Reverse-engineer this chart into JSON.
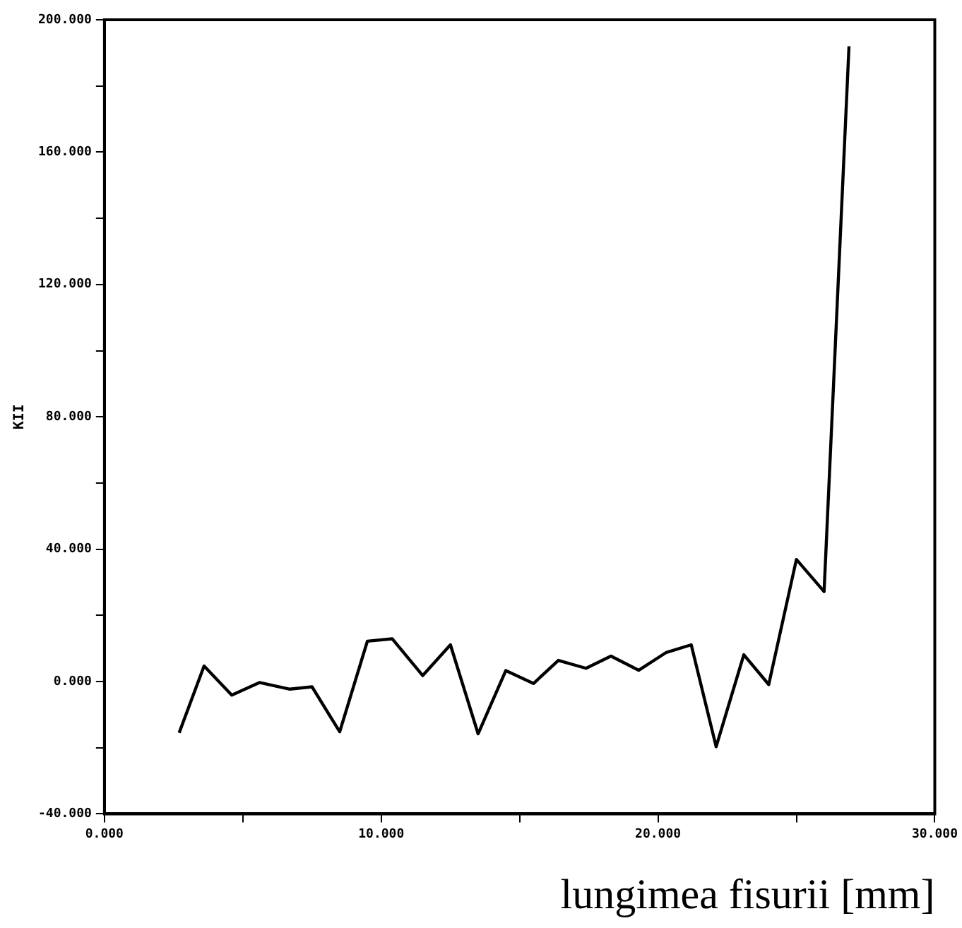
{
  "chart_data": {
    "type": "line",
    "xlabel": "lungimea fisurii [mm]",
    "ylabel": "KII",
    "x": [
      2.7,
      3.6,
      4.6,
      5.6,
      6.7,
      7.5,
      8.5,
      9.5,
      10.4,
      11.5,
      12.5,
      13.5,
      14.5,
      15.5,
      16.4,
      17.4,
      18.3,
      19.3,
      20.3,
      21.2,
      22.1,
      23.1,
      24.0,
      25.0,
      26.0,
      26.9
    ],
    "series": [
      {
        "color": "#000000",
        "values": [
          -15.5,
          4.7,
          -4.1,
          -0.3,
          -2.3,
          -1.6,
          -15.2,
          12.2,
          12.9,
          1.8,
          11.1,
          -15.8,
          3.3,
          -0.6,
          6.4,
          4.0,
          7.7,
          3.4,
          8.8,
          11.1,
          -19.7,
          8.1,
          -0.9,
          36.9,
          27.2,
          192
        ]
      }
    ],
    "xlim": [
      0,
      30
    ],
    "ylim": [
      -40,
      200
    ],
    "xticks": [
      {
        "value": 0,
        "label": "0.000"
      },
      {
        "value": 5,
        "label": null
      },
      {
        "value": 10,
        "label": "10.000"
      },
      {
        "value": 15,
        "label": null
      },
      {
        "value": 20,
        "label": "20.000"
      },
      {
        "value": 25,
        "label": null
      },
      {
        "value": 30,
        "label": "30.000"
      }
    ],
    "yticks": [
      {
        "value": -40,
        "label": "-40.000"
      },
      {
        "value": -20,
        "label": null
      },
      {
        "value": 0,
        "label": "0.000"
      },
      {
        "value": 20,
        "label": null
      },
      {
        "value": 40,
        "label": "40.000"
      },
      {
        "value": 60,
        "label": null
      },
      {
        "value": 80,
        "label": "80.000"
      },
      {
        "value": 100,
        "label": null
      },
      {
        "value": 120,
        "label": "120.000"
      },
      {
        "value": 140,
        "label": null
      },
      {
        "value": 160,
        "label": "160.000"
      },
      {
        "value": 180,
        "label": null
      },
      {
        "value": 200,
        "label": "200.000"
      }
    ],
    "grid": false,
    "legend": false,
    "marker": "none",
    "line_style": "solid"
  }
}
